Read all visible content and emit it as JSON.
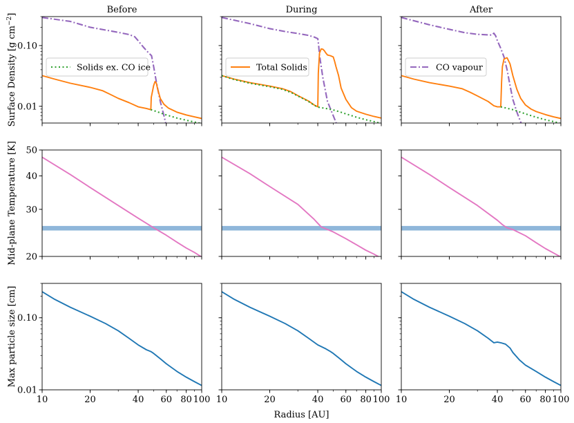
{
  "chart_data": {
    "type": "line",
    "layout": "3x3 grid of panels",
    "columns": [
      "Before",
      "During",
      "After"
    ],
    "xlabel": "Radius [AU]",
    "xscale": "log",
    "xlim": [
      10,
      100
    ],
    "x_ticks": [
      10,
      20,
      40,
      60,
      80,
      100
    ],
    "x_tick_labels": [
      "10",
      "20",
      "40",
      "60",
      "80",
      "100"
    ],
    "rows": [
      {
        "id": "sigma",
        "ylabel": "Surface Density [g cm",
        "ylabel_sup": "−2",
        "ylabel_end": "]",
        "yscale": "log",
        "ylim": [
          0.0053,
          0.3
        ],
        "y_ticks": [
          0.01,
          0.1
        ],
        "y_tick_labels": [
          "0.01",
          "0.10"
        ]
      },
      {
        "id": "temp",
        "ylabel": "Mid-plane Temperature [K]",
        "yscale": "log",
        "ylim": [
          20,
          50
        ],
        "y_ticks": [
          20,
          30,
          40,
          50
        ],
        "y_tick_labels": [
          "20",
          "30",
          "40",
          "50"
        ],
        "shaded_band": {
          "ymin": 25,
          "ymax": 26,
          "color": "#8fb7da",
          "note": "CO snow-line temperature range"
        }
      },
      {
        "id": "amax",
        "ylabel": "Max particle size [cm]",
        "yscale": "log",
        "ylim": [
          0.01,
          0.3
        ],
        "y_ticks": [
          0.01,
          0.1
        ],
        "y_tick_labels": [
          "0.01",
          "0.10"
        ]
      }
    ],
    "legends": [
      {
        "column": 0,
        "label": "Solids ex. CO ice",
        "color": "#2ca02c",
        "style": "dotted"
      },
      {
        "column": 1,
        "label": "Total Solids",
        "color": "#ff7f0e",
        "style": "solid"
      },
      {
        "column": 2,
        "label": "CO vapour",
        "color": "#9467bd",
        "style": "dashdot"
      }
    ],
    "series": [
      {
        "row": 0,
        "col": 0,
        "name": "CO vapour",
        "color": "#9467bd",
        "style": "dashdot",
        "x": [
          10,
          15,
          20,
          25,
          30,
          35,
          38,
          40,
          43,
          46,
          48.5,
          50,
          52,
          55,
          58,
          60
        ],
        "y": [
          0.29,
          0.25,
          0.2,
          0.18,
          0.165,
          0.152,
          0.14,
          0.12,
          0.095,
          0.078,
          0.068,
          0.045,
          0.025,
          0.012,
          0.007,
          0.0048
        ]
      },
      {
        "row": 0,
        "col": 0,
        "name": "Total Solids",
        "color": "#ff7f0e",
        "style": "solid",
        "x": [
          10,
          12,
          15,
          20,
          24,
          27,
          30,
          35,
          40,
          45,
          48,
          48.3,
          50,
          51,
          52,
          53,
          55,
          58,
          62,
          70,
          80,
          90,
          100
        ],
        "y": [
          0.032,
          0.028,
          0.024,
          0.0205,
          0.018,
          0.0155,
          0.0135,
          0.0115,
          0.0098,
          0.0092,
          0.0088,
          0.014,
          0.022,
          0.0255,
          0.024,
          0.019,
          0.0135,
          0.0108,
          0.0093,
          0.008,
          0.0072,
          0.0067,
          0.0063
        ]
      },
      {
        "row": 0,
        "col": 0,
        "name": "Solids ex. CO ice",
        "color": "#2ca02c",
        "style": "dotted",
        "x": [
          48,
          50,
          55,
          60,
          70,
          80,
          90,
          100
        ],
        "y": [
          0.0088,
          0.0085,
          0.0078,
          0.0072,
          0.0064,
          0.0059,
          0.0055,
          0.0052
        ]
      },
      {
        "row": 0,
        "col": 1,
        "name": "CO vapour",
        "color": "#9467bd",
        "style": "dashdot",
        "x": [
          10,
          15,
          20,
          25,
          30,
          35,
          38,
          40,
          40.5,
          41,
          43,
          46,
          50,
          53
        ],
        "y": [
          0.29,
          0.23,
          0.19,
          0.17,
          0.158,
          0.147,
          0.138,
          0.13,
          0.1,
          0.07,
          0.03,
          0.012,
          0.007,
          0.0048
        ]
      },
      {
        "row": 0,
        "col": 1,
        "name": "Total Solids",
        "color": "#ff7f0e",
        "style": "solid",
        "x": [
          10,
          12,
          15,
          20,
          24,
          27,
          30,
          35,
          38,
          40,
          40.3,
          41,
          42,
          43,
          44,
          45,
          46,
          48,
          50,
          51,
          52,
          54,
          56,
          60,
          65,
          70,
          80,
          90,
          100
        ],
        "y": [
          0.032,
          0.028,
          0.0245,
          0.0215,
          0.0195,
          0.0175,
          0.015,
          0.0122,
          0.0105,
          0.0098,
          0.035,
          0.075,
          0.088,
          0.087,
          0.082,
          0.075,
          0.07,
          0.068,
          0.065,
          0.055,
          0.045,
          0.032,
          0.02,
          0.013,
          0.0095,
          0.0083,
          0.0074,
          0.0068,
          0.0064
        ]
      },
      {
        "row": 0,
        "col": 1,
        "name": "Solids ex. CO ice",
        "color": "#2ca02c",
        "style": "dotted",
        "x": [
          10,
          12,
          15,
          20,
          24,
          27,
          30,
          35,
          38,
          40,
          45,
          50,
          55,
          60,
          70,
          80,
          90,
          100
        ],
        "y": [
          0.032,
          0.0275,
          0.024,
          0.021,
          0.019,
          0.017,
          0.0148,
          0.012,
          0.0104,
          0.0097,
          0.0092,
          0.0087,
          0.0081,
          0.0075,
          0.0066,
          0.006,
          0.0056,
          0.0052
        ]
      },
      {
        "row": 0,
        "col": 2,
        "name": "CO vapour",
        "color": "#9467bd",
        "style": "dashdot",
        "x": [
          10,
          15,
          20,
          25,
          30,
          35,
          37,
          38,
          39,
          40,
          42,
          44,
          46,
          48,
          50,
          53,
          56,
          58
        ],
        "y": [
          0.29,
          0.22,
          0.185,
          0.163,
          0.153,
          0.15,
          0.149,
          0.16,
          0.145,
          0.12,
          0.09,
          0.065,
          0.04,
          0.022,
          0.013,
          0.008,
          0.0055,
          0.0045
        ]
      },
      {
        "row": 0,
        "col": 2,
        "name": "Total Solids",
        "color": "#ff7f0e",
        "style": "solid",
        "x": [
          10,
          12,
          15,
          20,
          24,
          27,
          30,
          35,
          38,
          40,
          42,
          42.5,
          43,
          44,
          46,
          48,
          50,
          53,
          56,
          60,
          65,
          70,
          80,
          90,
          100
        ],
        "y": [
          0.032,
          0.028,
          0.0245,
          0.0215,
          0.0195,
          0.017,
          0.0148,
          0.012,
          0.0102,
          0.0098,
          0.0098,
          0.025,
          0.045,
          0.06,
          0.063,
          0.05,
          0.032,
          0.019,
          0.0135,
          0.0105,
          0.009,
          0.0082,
          0.0073,
          0.0067,
          0.0063
        ]
      },
      {
        "row": 0,
        "col": 2,
        "name": "Solids ex. CO ice",
        "color": "#2ca02c",
        "style": "dotted",
        "x": [
          42,
          45,
          50,
          55,
          60,
          70,
          80,
          90,
          100
        ],
        "y": [
          0.0098,
          0.0094,
          0.0088,
          0.0081,
          0.0075,
          0.0066,
          0.006,
          0.0056,
          0.0052
        ]
      },
      {
        "row": 1,
        "col": 0,
        "name": "Mid-plane temperature",
        "color": "#e377c2",
        "style": "solid",
        "x": [
          10,
          15,
          20,
          30,
          40,
          50,
          60,
          70,
          80,
          90,
          100
        ],
        "y": [
          47,
          40.5,
          36.2,
          31.0,
          27.8,
          25.6,
          24.0,
          22.6,
          21.5,
          20.7,
          19.9
        ]
      },
      {
        "row": 1,
        "col": 1,
        "name": "Mid-plane temperature",
        "color": "#e377c2",
        "style": "solid",
        "x": [
          10,
          15,
          20,
          30,
          38,
          40,
          42,
          50,
          60,
          70,
          80,
          90,
          100
        ],
        "y": [
          47,
          40.8,
          36.5,
          31.3,
          27.5,
          26.6,
          25.8,
          24.7,
          23.3,
          22.1,
          21.1,
          20.4,
          19.7
        ]
      },
      {
        "row": 1,
        "col": 2,
        "name": "Mid-plane temperature",
        "color": "#e377c2",
        "style": "solid",
        "x": [
          10,
          15,
          20,
          30,
          40,
          43,
          46,
          50,
          60,
          70,
          80,
          90,
          100
        ],
        "y": [
          47,
          40.5,
          36.2,
          31.0,
          27.3,
          26.3,
          25.6,
          25.2,
          23.9,
          22.5,
          21.4,
          20.6,
          19.9
        ]
      },
      {
        "row": 2,
        "col": 0,
        "name": "Max particle size",
        "color": "#1f77b4",
        "style": "solid",
        "x": [
          10,
          12,
          15,
          20,
          25,
          30,
          35,
          40,
          45,
          48,
          50,
          55,
          60,
          70,
          80,
          90,
          100
        ],
        "y": [
          0.23,
          0.18,
          0.14,
          0.105,
          0.083,
          0.066,
          0.052,
          0.042,
          0.036,
          0.034,
          0.032,
          0.027,
          0.023,
          0.018,
          0.015,
          0.013,
          0.0115
        ]
      },
      {
        "row": 2,
        "col": 1,
        "name": "Max particle size",
        "color": "#1f77b4",
        "style": "solid",
        "x": [
          10,
          12,
          15,
          20,
          25,
          30,
          35,
          40,
          45,
          48,
          50,
          55,
          60,
          70,
          80,
          90,
          100
        ],
        "y": [
          0.23,
          0.18,
          0.14,
          0.105,
          0.083,
          0.066,
          0.052,
          0.042,
          0.037,
          0.034,
          0.032,
          0.027,
          0.023,
          0.018,
          0.015,
          0.013,
          0.0115
        ]
      },
      {
        "row": 2,
        "col": 2,
        "name": "Max particle size",
        "color": "#1f77b4",
        "style": "solid",
        "x": [
          10,
          12,
          15,
          20,
          25,
          30,
          35,
          38,
          40,
          42,
          45,
          48,
          50,
          55,
          60,
          70,
          80,
          90,
          100
        ],
        "y": [
          0.23,
          0.18,
          0.14,
          0.105,
          0.083,
          0.066,
          0.052,
          0.045,
          0.046,
          0.045,
          0.043,
          0.038,
          0.033,
          0.026,
          0.022,
          0.018,
          0.015,
          0.013,
          0.0115
        ]
      }
    ]
  }
}
